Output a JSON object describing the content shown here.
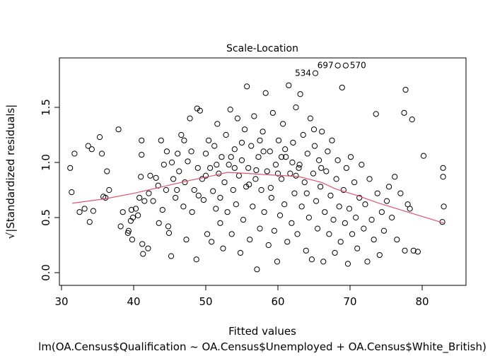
{
  "chart_data": {
    "type": "scatter",
    "title": "Scale-Location",
    "xlabel": "Fitted values",
    "ylabel": "√|Standardized residuals|",
    "subtitle": "lm(OA.Census$Qualification ~ OA.Census$Unemployed + OA.Census$White_British)",
    "xlim": [
      29.5,
      84.5
    ],
    "ylim": [
      -0.05,
      1.95
    ],
    "xticks": [
      "30",
      "40",
      "50",
      "60",
      "70",
      "80"
    ],
    "xtick_values": [
      30,
      40,
      50,
      60,
      70,
      80
    ],
    "yticks": [
      "0.0",
      "0.5",
      "1.0",
      "1.5"
    ],
    "ytick_values": [
      0,
      0.5,
      1.0,
      1.5
    ],
    "grid": false,
    "smooth_color": "#DF536B",
    "smooth": [
      [
        31.5,
        0.63
      ],
      [
        36,
        0.67
      ],
      [
        40,
        0.72
      ],
      [
        44,
        0.78
      ],
      [
        48,
        0.84
      ],
      [
        51,
        0.88
      ],
      [
        53,
        0.91
      ],
      [
        56,
        0.9
      ],
      [
        58,
        0.89
      ],
      [
        61,
        0.88
      ],
      [
        63,
        0.87
      ],
      [
        66,
        0.82
      ],
      [
        68,
        0.76
      ],
      [
        71,
        0.7
      ],
      [
        74,
        0.63
      ],
      [
        78,
        0.55
      ],
      [
        83,
        0.45
      ]
    ],
    "labeled_points": [
      {
        "label": "534",
        "x": 65.2,
        "y": 1.81
      },
      {
        "label": "697",
        "x": 68.3,
        "y": 1.88
      },
      {
        "label": "570",
        "x": 69.4,
        "y": 1.88
      }
    ],
    "points": [
      [
        31.2,
        0.95
      ],
      [
        31.4,
        0.73
      ],
      [
        31.8,
        1.08
      ],
      [
        32.5,
        0.55
      ],
      [
        33.2,
        0.58
      ],
      [
        33.7,
        1.15
      ],
      [
        33.9,
        0.46
      ],
      [
        34.2,
        1.12
      ],
      [
        34.4,
        0.56
      ],
      [
        35.3,
        1.23
      ],
      [
        35.6,
        1.08
      ],
      [
        35.8,
        0.69
      ],
      [
        36.3,
        0.92
      ],
      [
        36.6,
        0.75
      ],
      [
        36.1,
        0.68
      ],
      [
        37.9,
        1.3
      ],
      [
        38.2,
        0.42
      ],
      [
        38.5,
        0.55
      ],
      [
        39.2,
        0.36
      ],
      [
        39.3,
        0.38
      ],
      [
        39.6,
        0.47
      ],
      [
        39.7,
        0.57
      ],
      [
        39.8,
        0.3
      ],
      [
        39.9,
        0.5
      ],
      [
        40.3,
        0.58
      ],
      [
        40.6,
        0.52
      ],
      [
        40.8,
        0.68
      ],
      [
        41,
        0.87
      ],
      [
        41.1,
        1.2
      ],
      [
        41.3,
        0.17
      ],
      [
        41.1,
        1.07
      ],
      [
        41.5,
        0.65
      ],
      [
        41.2,
        0.26
      ],
      [
        42,
        0.22
      ],
      [
        42.1,
        0.72
      ],
      [
        42.3,
        0.88
      ],
      [
        42.7,
        0.65
      ],
      [
        43.1,
        0.86
      ],
      [
        43.4,
        0.79
      ],
      [
        43.5,
        0.45
      ],
      [
        43.8,
        1.2
      ],
      [
        44,
        0.57
      ],
      [
        44.2,
        0.98
      ],
      [
        44.5,
        0.75
      ],
      [
        44.6,
        1.1
      ],
      [
        44.8,
        0.42
      ],
      [
        44.9,
        0.36
      ],
      [
        45.3,
        1.0
      ],
      [
        45.2,
        0.15
      ],
      [
        45.8,
        0.68
      ],
      [
        46.1,
        1.08
      ],
      [
        46.3,
        0.92
      ],
      [
        46.6,
        1.25
      ],
      [
        46.9,
        0.6
      ],
      [
        47.1,
        0.82
      ],
      [
        47.3,
        0.3
      ],
      [
        47.5,
        1.01
      ],
      [
        47.8,
        1.4
      ],
      [
        48.1,
        0.55
      ],
      [
        48.4,
        0.75
      ],
      [
        48.7,
        0.12
      ],
      [
        48.8,
        1.49
      ],
      [
        48.9,
        0.95
      ],
      [
        49.2,
        1.47
      ],
      [
        49.5,
        0.85
      ],
      [
        49.7,
        0.66
      ],
      [
        50,
        1.08
      ],
      [
        50.2,
        0.35
      ],
      [
        50.4,
        1.2
      ],
      [
        50.6,
        0.95
      ],
      [
        50.8,
        0.28
      ],
      [
        51,
        0.74
      ],
      [
        51.2,
        1.15
      ],
      [
        51.4,
        0.58
      ],
      [
        51.6,
        1.35
      ],
      [
        51.8,
        0.9
      ],
      [
        52,
        0.45
      ],
      [
        52.2,
        1.05
      ],
      [
        52.4,
        0.22
      ],
      [
        52.6,
        0.82
      ],
      [
        52.8,
        1.25
      ],
      [
        53,
        0.55
      ],
      [
        53.2,
        0.98
      ],
      [
        53.4,
        1.48
      ],
      [
        53.6,
        0.35
      ],
      [
        53.8,
        0.75
      ],
      [
        54,
        1.12
      ],
      [
        54.2,
        0.62
      ],
      [
        54.4,
        1.4
      ],
      [
        54.6,
        0.88
      ],
      [
        54.8,
        0.18
      ],
      [
        55,
        1.02
      ],
      [
        55.2,
        0.48
      ],
      [
        55.4,
        1.3
      ],
      [
        55.6,
        0.78
      ],
      [
        55.7,
        1.69
      ],
      [
        55.9,
        0.95
      ],
      [
        56.1,
        0.3
      ],
      [
        56.3,
        1.15
      ],
      [
        56.5,
        0.6
      ],
      [
        56.7,
        1.42
      ],
      [
        56.9,
        0.85
      ],
      [
        57.1,
        0.03
      ],
      [
        57.3,
        1.05
      ],
      [
        57.5,
        0.4
      ],
      [
        57.7,
        0.75
      ],
      [
        57.9,
        1.28
      ],
      [
        58.1,
        0.55
      ],
      [
        58.3,
        1.63
      ],
      [
        58.5,
        0.92
      ],
      [
        58.7,
        0.25
      ],
      [
        58.9,
        1.1
      ],
      [
        59.1,
        0.68
      ],
      [
        59.3,
        1.45
      ],
      [
        59.5,
        0.38
      ],
      [
        59.7,
        0.98
      ],
      [
        59.9,
        0.1
      ],
      [
        60.1,
        1.2
      ],
      [
        60.3,
        0.52
      ],
      [
        60.5,
        0.85
      ],
      [
        60.7,
        1.35
      ],
      [
        60.9,
        0.62
      ],
      [
        61.1,
        1.05
      ],
      [
        61.3,
        0.28
      ],
      [
        61.5,
        1.7
      ],
      [
        61.7,
        0.9
      ],
      [
        61.9,
        0.45
      ],
      [
        62.1,
        1.18
      ],
      [
        62.3,
        0.72
      ],
      [
        62.5,
        1.5
      ],
      [
        62.7,
        0.35
      ],
      [
        62.9,
        0.95
      ],
      [
        63.1,
        1.62
      ],
      [
        63.3,
        0.6
      ],
      [
        63.5,
        1.25
      ],
      [
        63.7,
        0.82
      ],
      [
        63.9,
        0.2
      ],
      [
        64.1,
        1.08
      ],
      [
        64.3,
        0.5
      ],
      [
        64.5,
        1.4
      ],
      [
        64.7,
        0.12
      ],
      [
        64.9,
        0.9
      ],
      [
        65.1,
        1.15
      ],
      [
        65.3,
        0.65
      ],
      [
        65.5,
        0.4
      ],
      [
        65.7,
        1.02
      ],
      [
        65.9,
        0.78
      ],
      [
        66.1,
        1.28
      ],
      [
        66.3,
        0.1
      ],
      [
        66.5,
        0.55
      ],
      [
        66.7,
        0.92
      ],
      [
        66.9,
        1.1
      ],
      [
        67.1,
        0.35
      ],
      [
        67.3,
        0.7
      ],
      [
        67.5,
        1.2
      ],
      [
        67.7,
        0.48
      ],
      [
        67.9,
        0.18
      ],
      [
        68.1,
        0.85
      ],
      [
        68.3,
        1.02
      ],
      [
        68.5,
        0.6
      ],
      [
        68.7,
        0.28
      ],
      [
        68.9,
        1.68
      ],
      [
        69.1,
        0.75
      ],
      [
        69.3,
        0.45
      ],
      [
        69.5,
        0.95
      ],
      [
        69.7,
        0.08
      ],
      [
        69.9,
        0.58
      ],
      [
        70.1,
        1.05
      ],
      [
        70.3,
        0.35
      ],
      [
        70.6,
        0.82
      ],
      [
        70.8,
        0.5
      ],
      [
        71,
        0.22
      ],
      [
        71.3,
        0.68
      ],
      [
        71.6,
        0.98
      ],
      [
        71.9,
        0.4
      ],
      [
        72.1,
        0.62
      ],
      [
        72.4,
        0.1
      ],
      [
        72.7,
        0.85
      ],
      [
        73,
        0.48
      ],
      [
        73.3,
        0.3
      ],
      [
        73.6,
        1.44
      ],
      [
        73.8,
        0.72
      ],
      [
        74.1,
        0.16
      ],
      [
        74.4,
        0.55
      ],
      [
        74.7,
        0.38
      ],
      [
        75.1,
        0.65
      ],
      [
        75.4,
        0.78
      ],
      [
        75.8,
        0.5
      ],
      [
        76.2,
        0.87
      ],
      [
        76.5,
        0.3
      ],
      [
        77,
        0.72
      ],
      [
        77.5,
        1.45
      ],
      [
        77.7,
        1.66
      ],
      [
        77.6,
        0.2
      ],
      [
        78,
        0.62
      ],
      [
        78.3,
        0.58
      ],
      [
        78.6,
        1.39
      ],
      [
        78.8,
        0.2
      ],
      [
        79.4,
        0.19
      ],
      [
        80.2,
        1.06
      ],
      [
        82.9,
        0.95
      ],
      [
        82.9,
        0.87
      ],
      [
        83,
        0.6
      ],
      [
        82.8,
        0.46
      ],
      [
        62,
        1.0
      ],
      [
        60,
        0.9
      ],
      [
        58,
        1.1
      ],
      [
        56,
        0.8
      ],
      [
        54,
        0.95
      ],
      [
        61,
        1.12
      ],
      [
        63,
        0.98
      ],
      [
        59,
        0.77
      ],
      [
        57,
        0.93
      ],
      [
        55,
        1.18
      ],
      [
        64,
        0.72
      ],
      [
        66,
        0.95
      ],
      [
        52,
        0.68
      ],
      [
        50,
        0.88
      ],
      [
        48,
        1.1
      ],
      [
        46,
        0.75
      ],
      [
        65,
        1.3
      ],
      [
        62.5,
        0.88
      ],
      [
        60.5,
        1.05
      ],
      [
        57.5,
        1.2
      ],
      [
        53.5,
        1.05
      ],
      [
        51.5,
        0.98
      ],
      [
        49,
        0.7
      ],
      [
        47,
        1.2
      ],
      [
        45.5,
        0.85
      ]
    ]
  }
}
